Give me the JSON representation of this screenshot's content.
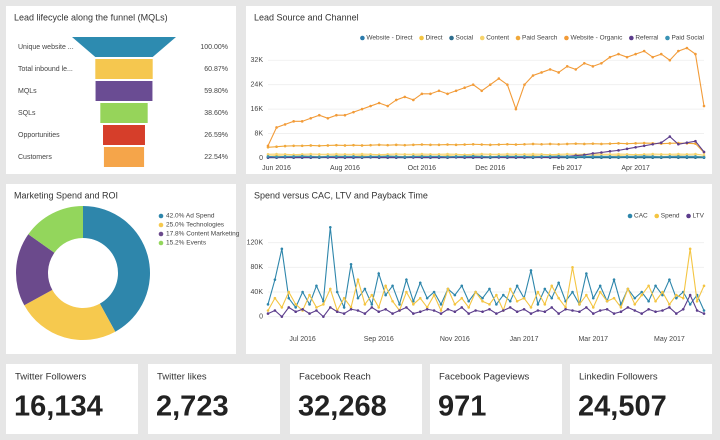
{
  "chart_data": [
    {
      "type": "funnel",
      "title": "Lead lifecycle along the funnel (MQLs)",
      "categories": [
        "Unique website ...",
        "Total inbound le...",
        "MQLs",
        "SQLs",
        "Opportunities",
        "Customers"
      ],
      "values": [
        100,
        60.87,
        59.8,
        38.6,
        26.59,
        22.54
      ],
      "value_labels": [
        "100.00%",
        "60.87%",
        "59.80%",
        "38.60%",
        "26.59%",
        "22.54%"
      ],
      "colors": [
        "#2d8bb0",
        "#f5c74f",
        "#6a4c93",
        "#96d45a",
        "#d63e2a",
        "#f5a54a"
      ]
    },
    {
      "type": "line",
      "title": "Lead Source and Channel",
      "legend": "top-right",
      "grid": true,
      "categories": [
        null,
        "Jun 2016",
        null,
        null,
        null,
        null,
        null,
        null,
        null,
        "Aug 2016",
        null,
        null,
        null,
        null,
        null,
        null,
        null,
        null,
        "Oct 2016",
        null,
        null,
        null,
        null,
        null,
        null,
        null,
        "Dec 2016",
        null,
        null,
        null,
        null,
        null,
        null,
        null,
        null,
        "Feb 2017",
        null,
        null,
        null,
        null,
        null,
        null,
        null,
        "Apr 2017",
        null,
        null,
        null,
        null,
        null,
        null,
        null,
        null
      ],
      "ylim": [
        0,
        36000
      ],
      "yticks": [
        0,
        {
          "value": 8000,
          "label": "8K"
        },
        {
          "value": 16000,
          "label": "16K"
        },
        {
          "value": 24000,
          "label": "24K"
        },
        {
          "value": 32000,
          "label": "32K"
        }
      ],
      "series": [
        {
          "name": "Website - Direct",
          "color": "#2b7bab",
          "values": [
            300,
            300,
            400,
            300,
            300,
            300,
            400,
            300,
            300,
            300,
            300,
            300,
            400,
            300,
            300,
            300,
            400,
            300,
            300,
            300,
            300,
            300,
            400,
            300,
            300,
            300,
            400,
            300,
            300,
            300,
            300,
            300,
            400,
            300,
            300,
            300,
            400,
            300,
            300,
            300,
            300,
            300,
            400,
            300,
            300,
            300,
            400,
            300,
            300,
            300,
            300,
            200
          ]
        },
        {
          "name": "Direct",
          "color": "#f4c542",
          "values": [
            600,
            700,
            600,
            600,
            700,
            600,
            500,
            600,
            700,
            600,
            600,
            700,
            600,
            600,
            700,
            600,
            500,
            600,
            700,
            600,
            600,
            700,
            600,
            600,
            700,
            600,
            500,
            600,
            700,
            600,
            600,
            700,
            600,
            600,
            700,
            600,
            500,
            600,
            700,
            600,
            600,
            700,
            600,
            600,
            700,
            600,
            500,
            600,
            700,
            600,
            600,
            400
          ]
        },
        {
          "name": "Social",
          "color": "#2e6e8e",
          "values": [
            100,
            100,
            200,
            100,
            100,
            100,
            100,
            200,
            100,
            100,
            100,
            100,
            200,
            100,
            100,
            100,
            100,
            200,
            100,
            100,
            100,
            100,
            200,
            100,
            100,
            100,
            100,
            200,
            100,
            100,
            100,
            100,
            200,
            100,
            100,
            100,
            100,
            200,
            100,
            100,
            100,
            100,
            200,
            100,
            100,
            100,
            100,
            200,
            100,
            100,
            100,
            100
          ]
        },
        {
          "name": "Content",
          "color": "#f6d36b",
          "values": [
            1200,
            1300,
            1200,
            1100,
            1200,
            1300,
            1200,
            1200,
            1300,
            1200,
            1200,
            1300,
            1200,
            1100,
            1200,
            1300,
            1200,
            1200,
            1300,
            1200,
            1200,
            1300,
            1200,
            1100,
            1200,
            1300,
            1200,
            1200,
            1300,
            1200,
            1200,
            1300,
            1200,
            1100,
            1200,
            1300,
            1200,
            1200,
            1300,
            1200,
            1200,
            1300,
            1200,
            1100,
            1200,
            1300,
            1200,
            1200,
            1300,
            1200,
            1300,
            900
          ]
        },
        {
          "name": "Paid Search",
          "color": "#f0a83a",
          "values": [
            3500,
            3700,
            3900,
            4000,
            4000,
            4100,
            4000,
            4100,
            4200,
            4100,
            4200,
            4100,
            4200,
            4300,
            4200,
            4300,
            4200,
            4300,
            4400,
            4300,
            4300,
            4400,
            4300,
            4400,
            4500,
            4400,
            4300,
            4400,
            4500,
            4400,
            4500,
            4600,
            4500,
            4600,
            4500,
            4600,
            4700,
            4600,
            4700,
            4600,
            4700,
            4800,
            4700,
            4800,
            4900,
            4800,
            4700,
            4800,
            4900,
            4800,
            4700,
            1800
          ]
        },
        {
          "name": "Website - Organic",
          "color": "#f29b38",
          "values": [
            4000,
            10000,
            11000,
            12000,
            12000,
            13000,
            14000,
            13000,
            14000,
            14000,
            15000,
            16000,
            17000,
            18000,
            17000,
            19000,
            20000,
            19000,
            21000,
            21000,
            22000,
            21000,
            22000,
            23000,
            24000,
            22000,
            24000,
            26000,
            24000,
            16000,
            24000,
            27000,
            28000,
            29000,
            28000,
            30000,
            29000,
            31000,
            30000,
            31000,
            33000,
            34000,
            33000,
            34000,
            35000,
            33000,
            34000,
            32000,
            35000,
            36000,
            34000,
            17000
          ]
        },
        {
          "name": "Referral",
          "color": "#5c3d8c",
          "values": [
            200,
            200,
            300,
            200,
            200,
            200,
            300,
            200,
            200,
            200,
            200,
            200,
            300,
            200,
            200,
            200,
            300,
            200,
            200,
            200,
            200,
            200,
            300,
            200,
            200,
            200,
            300,
            200,
            200,
            200,
            200,
            300,
            200,
            200,
            300,
            500,
            800,
            1000,
            1500,
            1800,
            2200,
            2500,
            3000,
            3500,
            4000,
            4500,
            5000,
            7000,
            4500,
            5000,
            5500,
            2000
          ]
        },
        {
          "name": "Paid Social",
          "color": "#3a93b5",
          "values": [
            500,
            400,
            500,
            500,
            600,
            500,
            400,
            500,
            500,
            500,
            500,
            400,
            500,
            500,
            600,
            500,
            400,
            500,
            500,
            500,
            500,
            400,
            500,
            500,
            600,
            500,
            400,
            500,
            500,
            500,
            500,
            400,
            500,
            500,
            600,
            500,
            400,
            500,
            500,
            500,
            500,
            400,
            500,
            500,
            600,
            500,
            400,
            500,
            500,
            500,
            500,
            300
          ]
        }
      ]
    },
    {
      "type": "donut",
      "title": "Marketing Spend and ROI",
      "categories": [
        "42.0% Ad Spend",
        "25.0% Technologies",
        "17.8% Content Marketing",
        "15.2% Events"
      ],
      "values": [
        42.0,
        25.0,
        17.8,
        15.2
      ],
      "colors": [
        "#2e86ab",
        "#f6c94e",
        "#6b4a8c",
        "#93d65c"
      ]
    },
    {
      "type": "line",
      "title": "Spend versus CAC, LTV and Payback Time",
      "legend": "top-right",
      "grid": true,
      "categories": [
        null,
        null,
        null,
        null,
        null,
        "Jul 2016",
        null,
        null,
        null,
        null,
        null,
        null,
        null,
        null,
        null,
        null,
        "Sep 2016",
        null,
        null,
        null,
        null,
        null,
        null,
        null,
        null,
        null,
        null,
        "Nov 2016",
        null,
        null,
        null,
        null,
        null,
        null,
        null,
        null,
        null,
        "Jan 2017",
        null,
        null,
        null,
        null,
        null,
        null,
        null,
        null,
        null,
        "Mar 2017",
        null,
        null,
        null,
        null,
        null,
        null,
        null,
        null,
        null,
        null,
        "May 2017",
        null,
        null,
        null,
        null,
        null
      ],
      "ylim": [
        -20000,
        160000
      ],
      "yticks": [
        0,
        {
          "value": 40000,
          "label": "40K"
        },
        {
          "value": 80000,
          "label": "80K"
        },
        {
          "value": 120000,
          "label": "120K"
        }
      ],
      "series": [
        {
          "name": "CAC",
          "color": "#2e86ab",
          "values": [
            20000,
            60000,
            110000,
            30000,
            15000,
            40000,
            20000,
            50000,
            25000,
            145000,
            40000,
            15000,
            85000,
            30000,
            45000,
            20000,
            70000,
            35000,
            50000,
            20000,
            60000,
            25000,
            55000,
            30000,
            40000,
            20000,
            45000,
            35000,
            50000,
            25000,
            40000,
            30000,
            45000,
            20000,
            35000,
            25000,
            50000,
            30000,
            75000,
            20000,
            45000,
            30000,
            55000,
            25000,
            40000,
            20000,
            70000,
            30000,
            50000,
            25000,
            60000,
            20000,
            45000,
            30000,
            40000,
            25000,
            50000,
            35000,
            60000,
            30000,
            40000,
            20000,
            35000,
            10000
          ]
        },
        {
          "name": "Spend",
          "color": "#f4c542",
          "values": [
            10000,
            30000,
            15000,
            40000,
            20000,
            10000,
            35000,
            15000,
            20000,
            45000,
            10000,
            30000,
            15000,
            60000,
            20000,
            35000,
            15000,
            50000,
            25000,
            10000,
            40000,
            20000,
            30000,
            15000,
            35000,
            10000,
            45000,
            20000,
            30000,
            15000,
            40000,
            25000,
            20000,
            35000,
            10000,
            45000,
            25000,
            30000,
            15000,
            40000,
            20000,
            50000,
            30000,
            15000,
            80000,
            20000,
            35000,
            15000,
            40000,
            25000,
            30000,
            15000,
            45000,
            20000,
            35000,
            50000,
            25000,
            40000,
            20000,
            35000,
            30000,
            110000,
            25000,
            50000
          ]
        },
        {
          "name": "LTV",
          "color": "#5c3d8c",
          "values": [
            5000,
            10000,
            0,
            15000,
            8000,
            12000,
            5000,
            10000,
            0,
            15000,
            8000,
            5000,
            12000,
            10000,
            5000,
            15000,
            8000,
            12000,
            5000,
            10000,
            15000,
            5000,
            8000,
            12000,
            10000,
            5000,
            12000,
            8000,
            15000,
            5000,
            10000,
            8000,
            12000,
            5000,
            10000,
            15000,
            8000,
            12000,
            5000,
            10000,
            8000,
            15000,
            5000,
            12000,
            10000,
            8000,
            15000,
            5000,
            10000,
            12000,
            5000,
            8000,
            15000,
            10000,
            5000,
            12000,
            8000,
            10000,
            15000,
            5000,
            12000,
            35000,
            10000,
            5000
          ]
        }
      ]
    }
  ],
  "kpis": [
    {
      "label": "Twitter Followers",
      "value": "16,134"
    },
    {
      "label": "Twitter likes",
      "value": "2,723"
    },
    {
      "label": "Facebook Reach",
      "value": "32,268"
    },
    {
      "label": "Facebook Pageviews",
      "value": "971"
    },
    {
      "label": "Linkedin Followers",
      "value": "24,507"
    }
  ]
}
